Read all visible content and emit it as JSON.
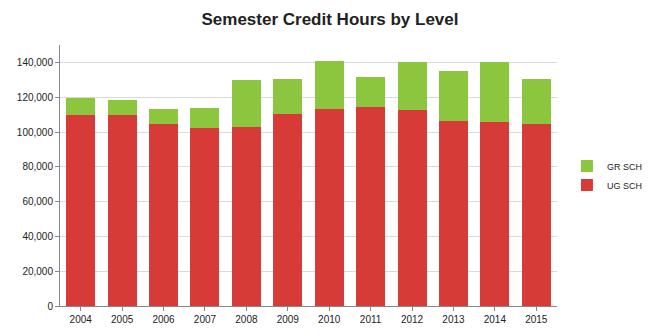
{
  "chart_data": {
    "type": "bar",
    "title": "Semester Credit Hours by Level",
    "categories": [
      "2004",
      "2005",
      "2006",
      "2007",
      "2008",
      "2009",
      "2010",
      "2011",
      "2012",
      "2013",
      "2014",
      "2015"
    ],
    "series": [
      {
        "name": "UG SCH",
        "color": "#d63b37",
        "values": [
          110000,
          110000,
          104500,
          102500,
          103000,
          110500,
          113500,
          114500,
          112500,
          106500,
          105500,
          104500
        ]
      },
      {
        "name": "GR SCH",
        "color": "#8cc63f",
        "values": [
          9500,
          8500,
          8500,
          11500,
          27000,
          20000,
          27500,
          17000,
          27500,
          28500,
          35000,
          26000
        ]
      }
    ],
    "stacked": true,
    "ylim": [
      0,
      150000
    ],
    "yticks": [
      0,
      {
        "value": 20000,
        "label": "20,000"
      },
      {
        "value": 40000,
        "label": "40,000"
      },
      {
        "value": 60000,
        "label": "60,000"
      },
      {
        "value": 80000,
        "label": "80,000"
      },
      {
        "value": 100000,
        "label": "100,000"
      },
      {
        "value": 120000,
        "label": "120,000"
      },
      {
        "value": 140000,
        "label": "140,000"
      }
    ],
    "grid": true,
    "legend": "right"
  }
}
